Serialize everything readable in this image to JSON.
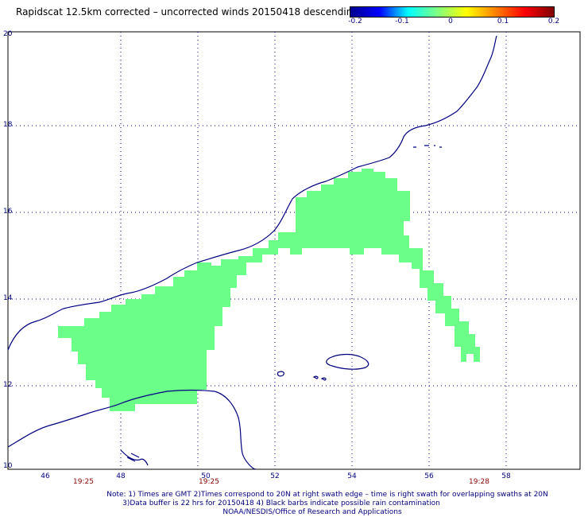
{
  "title": "Rapidscat 12.5km corrected – uncorrected winds 20150418 descending",
  "colorbar": {
    "labels": [
      "-0.2",
      "-0.1",
      "0",
      "0.1",
      "0.2"
    ]
  },
  "axes": {
    "lat_labels": [
      "20",
      "18",
      "16",
      "14",
      "12",
      "10"
    ],
    "lon_labels": [
      "46",
      "48",
      "50",
      "52",
      "54",
      "56",
      "58"
    ]
  },
  "time_labels": [
    "19:25",
    "19:25",
    "19:28"
  ],
  "notes": {
    "line1": "Note: 1) Times are GMT 2)Times correspond to 20N at right swath edge – time is right swath for overlapping swaths at 20N",
    "line2": "3)Data buffer is 22 hrs for 20150418 4) Black barbs indicate possible rain contamination",
    "line3": "NOAA/NESDIS/Office of Research and Applications"
  },
  "colors": {
    "coastline": "#000080",
    "swath_fill": "#6bff8a",
    "grid": "#000080"
  }
}
